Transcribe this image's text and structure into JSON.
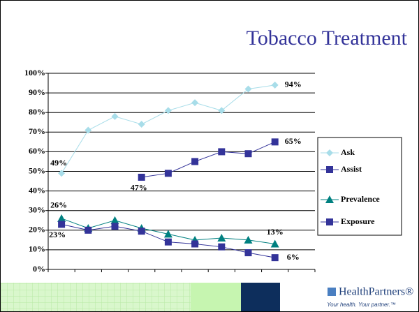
{
  "chart_data": {
    "type": "line",
    "title": "Tobacco Treatment",
    "categories": [
      null,
      null,
      null,
      null,
      null,
      null,
      null,
      null,
      null,
      null
    ],
    "series": [
      {
        "name": "Ask",
        "color": "#a8dde9",
        "marker": "diamond",
        "values": [
          49,
          71,
          78,
          74,
          81,
          85,
          81,
          92,
          94,
          null
        ],
        "value_labels": [
          "49%",
          null,
          null,
          null,
          null,
          null,
          null,
          null,
          "94%",
          null
        ]
      },
      {
        "name": "Assist",
        "color": "#333399",
        "marker": "square",
        "values": [
          null,
          null,
          null,
          47,
          49,
          55,
          60,
          59,
          65,
          null
        ],
        "value_labels": [
          null,
          null,
          null,
          "47%",
          null,
          null,
          null,
          null,
          "65%",
          null
        ]
      },
      {
        "name": "Prevalence",
        "color": "#008080",
        "marker": "triangle",
        "values": [
          26,
          21,
          25,
          21,
          18,
          15,
          16,
          15,
          13,
          null
        ],
        "value_labels": [
          "26%",
          null,
          null,
          null,
          null,
          null,
          null,
          null,
          "13%",
          null
        ]
      },
      {
        "name": "Exposure",
        "color": "#333399",
        "marker": "square",
        "values": [
          23,
          20,
          22,
          19.5,
          14,
          13,
          11.5,
          8.5,
          6,
          null
        ],
        "value_labels": [
          "23%",
          null,
          null,
          null,
          null,
          null,
          null,
          null,
          "6%",
          null
        ]
      }
    ],
    "ylim": [
      0,
      100
    ],
    "yticks": [
      {
        "value": 0,
        "label": "0%"
      },
      {
        "value": 10,
        "label": "10%"
      },
      {
        "value": 20,
        "label": "20%"
      },
      {
        "value": 30,
        "label": "30%"
      },
      {
        "value": 40,
        "label": "40%"
      },
      {
        "value": 50,
        "label": "50%"
      },
      {
        "value": 60,
        "label": "60%"
      },
      {
        "value": 70,
        "label": "70%"
      },
      {
        "value": 80,
        "label": "80%"
      },
      {
        "value": 90,
        "label": "90%"
      },
      {
        "value": 100,
        "label": "100%"
      }
    ],
    "grid": true,
    "legend": "right"
  },
  "footer": {
    "brand": "HealthPartners®",
    "tagline": "Your health. Your partner.™"
  }
}
